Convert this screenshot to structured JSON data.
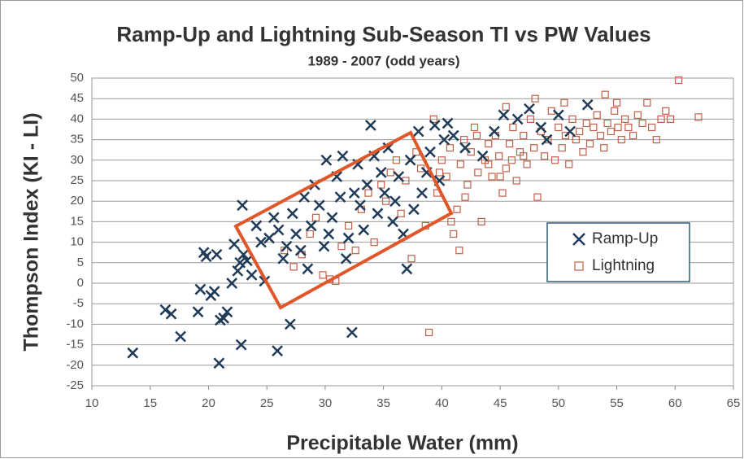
{
  "chart_data": {
    "type": "scatter",
    "title": "Ramp-Up and Lightning Sub-Season TI vs PW Values",
    "subtitle": "1989 - 2007 (odd years)",
    "x_label": "Precipitable Water (mm)",
    "y_label": "Thompson Index (KI - LI)",
    "xlim": [
      10,
      65
    ],
    "xticks": [
      10,
      15,
      20,
      25,
      30,
      35,
      40,
      45,
      50,
      55,
      60,
      65
    ],
    "ylim": [
      -25,
      50
    ],
    "yticks": [
      -25,
      -20,
      -15,
      -10,
      -5,
      0,
      5,
      10,
      15,
      20,
      25,
      30,
      35,
      40,
      45,
      50
    ],
    "grid": true,
    "legend": "right",
    "series": [
      {
        "name": "Lightning",
        "color": "#c0604a",
        "marker": "square",
        "points": [
          [
            26.5,
            8
          ],
          [
            27.3,
            4
          ],
          [
            28,
            7
          ],
          [
            28.7,
            12
          ],
          [
            29.2,
            16
          ],
          [
            29.8,
            2
          ],
          [
            30.4,
            1
          ],
          [
            30.9,
            0.5
          ],
          [
            31.4,
            9
          ],
          [
            32,
            14
          ],
          [
            32.6,
            8
          ],
          [
            33.1,
            18
          ],
          [
            33.7,
            22
          ],
          [
            34.2,
            10
          ],
          [
            34.8,
            24
          ],
          [
            35.2,
            20
          ],
          [
            35.6,
            27
          ],
          [
            36.1,
            30
          ],
          [
            36.5,
            17
          ],
          [
            36.9,
            25
          ],
          [
            37.4,
            6
          ],
          [
            37.8,
            32
          ],
          [
            38.2,
            28
          ],
          [
            38.6,
            14
          ],
          [
            38.9,
            -12
          ],
          [
            39.3,
            40
          ],
          [
            39.6,
            22
          ],
          [
            40,
            30
          ],
          [
            40.4,
            26
          ],
          [
            40.7,
            33
          ],
          [
            41,
            12
          ],
          [
            41.3,
            18
          ],
          [
            41.6,
            29
          ],
          [
            41.9,
            35
          ],
          [
            42.2,
            24
          ],
          [
            42.5,
            32
          ],
          [
            42.8,
            38
          ],
          [
            43.1,
            27
          ],
          [
            43.4,
            15
          ],
          [
            43.7,
            30
          ],
          [
            44,
            34
          ],
          [
            44.3,
            26
          ],
          [
            44.6,
            36
          ],
          [
            44.9,
            31
          ],
          [
            45.2,
            22
          ],
          [
            45.5,
            28
          ],
          [
            45.8,
            34
          ],
          [
            46.1,
            38
          ],
          [
            46.4,
            25
          ],
          [
            46.7,
            32
          ],
          [
            47,
            36
          ],
          [
            47.3,
            29
          ],
          [
            47.6,
            40
          ],
          [
            47.9,
            33
          ],
          [
            48.2,
            21
          ],
          [
            48.5,
            37
          ],
          [
            48.8,
            31
          ],
          [
            49.1,
            35
          ],
          [
            49.4,
            42
          ],
          [
            49.7,
            30
          ],
          [
            50,
            38
          ],
          [
            50.3,
            33
          ],
          [
            50.6,
            36
          ],
          [
            50.9,
            29
          ],
          [
            51.2,
            40
          ],
          [
            51.5,
            35
          ],
          [
            51.8,
            37
          ],
          [
            52.1,
            32
          ],
          [
            52.4,
            39
          ],
          [
            52.7,
            34
          ],
          [
            53,
            38
          ],
          [
            53.3,
            41
          ],
          [
            53.6,
            36
          ],
          [
            53.9,
            33
          ],
          [
            54.2,
            39
          ],
          [
            54.5,
            37
          ],
          [
            54.8,
            42
          ],
          [
            55.1,
            38
          ],
          [
            55.4,
            35
          ],
          [
            55.7,
            40
          ],
          [
            56,
            38
          ],
          [
            56.4,
            36
          ],
          [
            56.8,
            41
          ],
          [
            57.2,
            39
          ],
          [
            57.6,
            44
          ],
          [
            58,
            38
          ],
          [
            58.4,
            35
          ],
          [
            58.8,
            40
          ],
          [
            59.2,
            42
          ],
          [
            59.6,
            40
          ],
          [
            60.3,
            49.5
          ],
          [
            62,
            40.5
          ],
          [
            45,
            26
          ],
          [
            46,
            30
          ],
          [
            47,
            31
          ],
          [
            43,
            36
          ],
          [
            44,
            29
          ],
          [
            42,
            21
          ],
          [
            41.5,
            8
          ],
          [
            40.8,
            15
          ],
          [
            39.8,
            27
          ],
          [
            48,
            45
          ],
          [
            50.5,
            44
          ],
          [
            54,
            46
          ],
          [
            55,
            44
          ],
          [
            45.5,
            43
          ]
        ]
      },
      {
        "name": "Ramp-Up",
        "color": "#1f3b57",
        "marker": "x",
        "points": [
          [
            13.5,
            -17
          ],
          [
            16.3,
            -6.5
          ],
          [
            16.8,
            -7.5
          ],
          [
            17.6,
            -13
          ],
          [
            19.1,
            -7
          ],
          [
            19.3,
            -1.5
          ],
          [
            19.6,
            7.5
          ],
          [
            19.8,
            6.5
          ],
          [
            20.2,
            -3
          ],
          [
            20.5,
            -2
          ],
          [
            20.7,
            7
          ],
          [
            20.9,
            -19.5
          ],
          [
            21,
            -9
          ],
          [
            21.3,
            -8.5
          ],
          [
            21.6,
            -7
          ],
          [
            22,
            0
          ],
          [
            22.2,
            9.5
          ],
          [
            22.5,
            3
          ],
          [
            22.7,
            5
          ],
          [
            22.8,
            -15
          ],
          [
            22.9,
            19
          ],
          [
            23,
            7
          ],
          [
            23.3,
            5.5
          ],
          [
            23.7,
            2
          ],
          [
            24.1,
            14
          ],
          [
            24.5,
            10
          ],
          [
            24.8,
            0.5
          ],
          [
            25.2,
            11
          ],
          [
            25.6,
            16
          ],
          [
            25.9,
            -16.5
          ],
          [
            26,
            13
          ],
          [
            26.4,
            6
          ],
          [
            26.7,
            9
          ],
          [
            27,
            -10
          ],
          [
            27.2,
            17
          ],
          [
            27.5,
            12
          ],
          [
            27.9,
            8
          ],
          [
            28.2,
            21
          ],
          [
            28.5,
            3.5
          ],
          [
            28.8,
            14
          ],
          [
            29.1,
            24
          ],
          [
            29.5,
            19
          ],
          [
            29.9,
            9
          ],
          [
            30.1,
            30
          ],
          [
            30.3,
            12
          ],
          [
            30.6,
            16
          ],
          [
            31,
            26
          ],
          [
            31.3,
            21
          ],
          [
            31.5,
            31
          ],
          [
            31.8,
            6
          ],
          [
            32,
            11
          ],
          [
            32.3,
            -12
          ],
          [
            32.5,
            22
          ],
          [
            32.8,
            29
          ],
          [
            33,
            19
          ],
          [
            33.3,
            13
          ],
          [
            33.6,
            24
          ],
          [
            33.9,
            38.5
          ],
          [
            34.2,
            31
          ],
          [
            34.5,
            17
          ],
          [
            34.8,
            27
          ],
          [
            35.1,
            22
          ],
          [
            35.4,
            33
          ],
          [
            35.8,
            15
          ],
          [
            36,
            20
          ],
          [
            36.3,
            26
          ],
          [
            36.7,
            12
          ],
          [
            37,
            3.5
          ],
          [
            37.3,
            30
          ],
          [
            37.6,
            18
          ],
          [
            38,
            37
          ],
          [
            38.3,
            22
          ],
          [
            38.7,
            27
          ],
          [
            39,
            32
          ],
          [
            39.4,
            38.5
          ],
          [
            39.8,
            25
          ],
          [
            40.2,
            35
          ],
          [
            40.5,
            39
          ],
          [
            41,
            36
          ],
          [
            42,
            33
          ],
          [
            43.5,
            31
          ],
          [
            44.5,
            37
          ],
          [
            45.3,
            41
          ],
          [
            46.5,
            40
          ],
          [
            47.5,
            42.5
          ],
          [
            48.5,
            38
          ],
          [
            50,
            41
          ],
          [
            51,
            37
          ],
          [
            52.5,
            43.5
          ],
          [
            49,
            35
          ]
        ]
      }
    ]
  }
}
